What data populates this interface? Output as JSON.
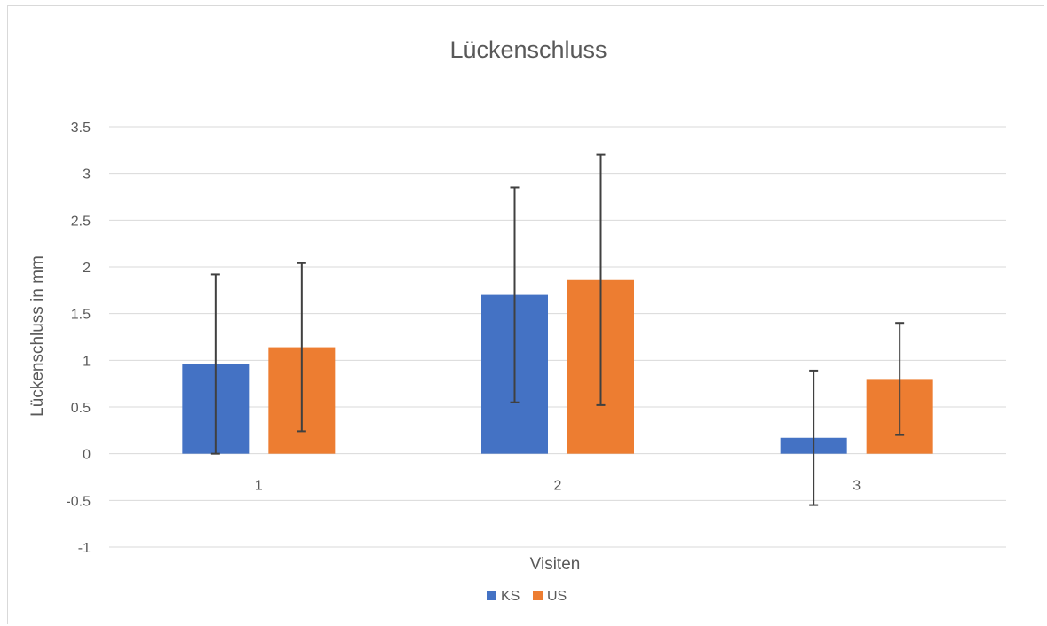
{
  "chart_data": {
    "type": "bar",
    "title": "Lückenschluss",
    "xlabel": "Visiten",
    "ylabel": "Lückenschluss in mm",
    "categories": [
      "1",
      "2",
      "3"
    ],
    "ylim": [
      -1,
      3.5
    ],
    "yticks": [
      3.5,
      3,
      2.5,
      2,
      1.5,
      1,
      0.5,
      0,
      -0.5,
      -1
    ],
    "grid": true,
    "legend_position": "bottom",
    "series": [
      {
        "name": "KS",
        "color": "#4472c4",
        "values": [
          0.96,
          1.7,
          0.17
        ],
        "error": [
          0.96,
          1.15,
          0.72
        ]
      },
      {
        "name": "US",
        "color": "#ed7d31",
        "values": [
          1.14,
          1.86,
          0.8
        ],
        "error": [
          0.9,
          1.34,
          0.6
        ]
      }
    ]
  }
}
